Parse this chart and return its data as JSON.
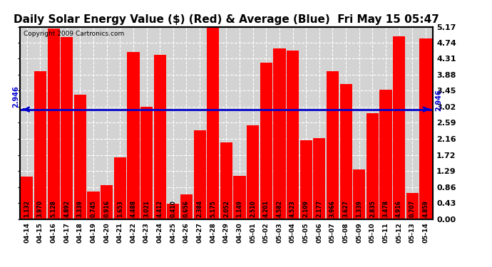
{
  "title": "Daily Solar Energy Value ($) (Red) & Average (Blue)  Fri May 15 05:47",
  "copyright": "Copyright 2009 Cartronics.com",
  "average": 2.946,
  "categories": [
    "04-14",
    "04-15",
    "04-16",
    "04-17",
    "04-18",
    "04-19",
    "04-20",
    "04-21",
    "04-22",
    "04-23",
    "04-24",
    "04-25",
    "04-26",
    "04-27",
    "04-28",
    "04-29",
    "04-30",
    "05-01",
    "05-02",
    "05-03",
    "05-04",
    "05-05",
    "05-06",
    "05-07",
    "05-08",
    "05-09",
    "05-10",
    "05-11",
    "05-12",
    "05-13",
    "05-14"
  ],
  "values": [
    1.132,
    3.97,
    5.128,
    4.892,
    3.339,
    0.745,
    0.916,
    1.653,
    4.488,
    3.021,
    4.412,
    0.41,
    0.656,
    2.384,
    5.175,
    2.052,
    1.149,
    2.51,
    4.201,
    4.582,
    4.523,
    2.109,
    2.177,
    3.966,
    3.627,
    1.339,
    2.835,
    3.478,
    4.916,
    0.707,
    4.859
  ],
  "bar_color": "#ff0000",
  "avg_line_color": "#0000cd",
  "fig_bg_color": "#ffffff",
  "plot_bg_color": "#d3d3d3",
  "grid_color": "#ffffff",
  "title_color": "#000000",
  "bar_text_color": "#000000",
  "ylim": [
    0.0,
    5.17
  ],
  "yticks": [
    0.0,
    0.43,
    0.86,
    1.29,
    1.72,
    2.16,
    2.59,
    3.02,
    3.45,
    3.88,
    4.31,
    4.74,
    5.17
  ],
  "avg_label": "2.946",
  "title_fontsize": 11,
  "copyright_fontsize": 6.5,
  "bar_label_fontsize": 5.5,
  "ytick_fontsize": 8,
  "xtick_fontsize": 6.5
}
